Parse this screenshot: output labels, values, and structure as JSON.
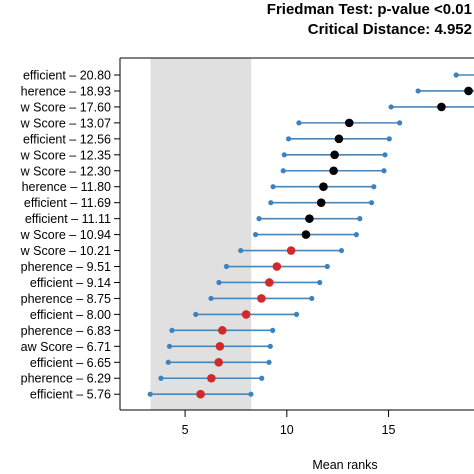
{
  "chart_data": {
    "type": "dot-interval",
    "title_lines": [
      "Friedman Test: p-value <0.01",
      "Critical Distance: 4.952"
    ],
    "xlabel": "Mean ranks",
    "xlim": [
      1.8,
      19.2
    ],
    "xticks": [
      5,
      10,
      15
    ],
    "tick_labels": [
      "5",
      "10",
      "15"
    ],
    "critical_distance": 4.952,
    "shaded_region": [
      3.3,
      8.25
    ],
    "colors": {
      "interval": "#4a86b5",
      "endpoint": "#3b83c0",
      "not_significant": "#000000",
      "significant": "#d22a2a",
      "shade": "#e0e0e0",
      "frame": "#000000"
    },
    "rows": [
      {
        "label": "efficient – 20.80",
        "rank": 20.8,
        "significant": false
      },
      {
        "label": "herence – 18.93",
        "rank": 18.93,
        "significant": false
      },
      {
        "label": "w Score – 17.60",
        "rank": 17.6,
        "significant": false
      },
      {
        "label": "w Score – 13.07",
        "rank": 13.07,
        "significant": false
      },
      {
        "label": "efficient – 12.56",
        "rank": 12.56,
        "significant": false
      },
      {
        "label": "w Score – 12.35",
        "rank": 12.35,
        "significant": false
      },
      {
        "label": "w Score – 12.30",
        "rank": 12.3,
        "significant": false
      },
      {
        "label": "herence – 11.80",
        "rank": 11.8,
        "significant": false
      },
      {
        "label": "efficient – 11.69",
        "rank": 11.69,
        "significant": false
      },
      {
        "label": "efficient – 11.11",
        "rank": 11.11,
        "significant": false
      },
      {
        "label": "w Score – 10.94",
        "rank": 10.94,
        "significant": false
      },
      {
        "label": "w Score – 10.21",
        "rank": 10.21,
        "significant": true
      },
      {
        "label": "pherence – 9.51",
        "rank": 9.51,
        "significant": true
      },
      {
        "label": "efficient – 9.14",
        "rank": 9.14,
        "significant": true
      },
      {
        "label": "pherence – 8.75",
        "rank": 8.75,
        "significant": true
      },
      {
        "label": "efficient – 8.00",
        "rank": 8.0,
        "significant": true
      },
      {
        "label": "pherence – 6.83",
        "rank": 6.83,
        "significant": true
      },
      {
        "label": "aw Score – 6.71",
        "rank": 6.71,
        "significant": true
      },
      {
        "label": "efficient – 6.65",
        "rank": 6.65,
        "significant": true
      },
      {
        "label": "pherence – 6.29",
        "rank": 6.29,
        "significant": true
      },
      {
        "label": "efficient – 5.76",
        "rank": 5.76,
        "significant": true
      }
    ]
  }
}
